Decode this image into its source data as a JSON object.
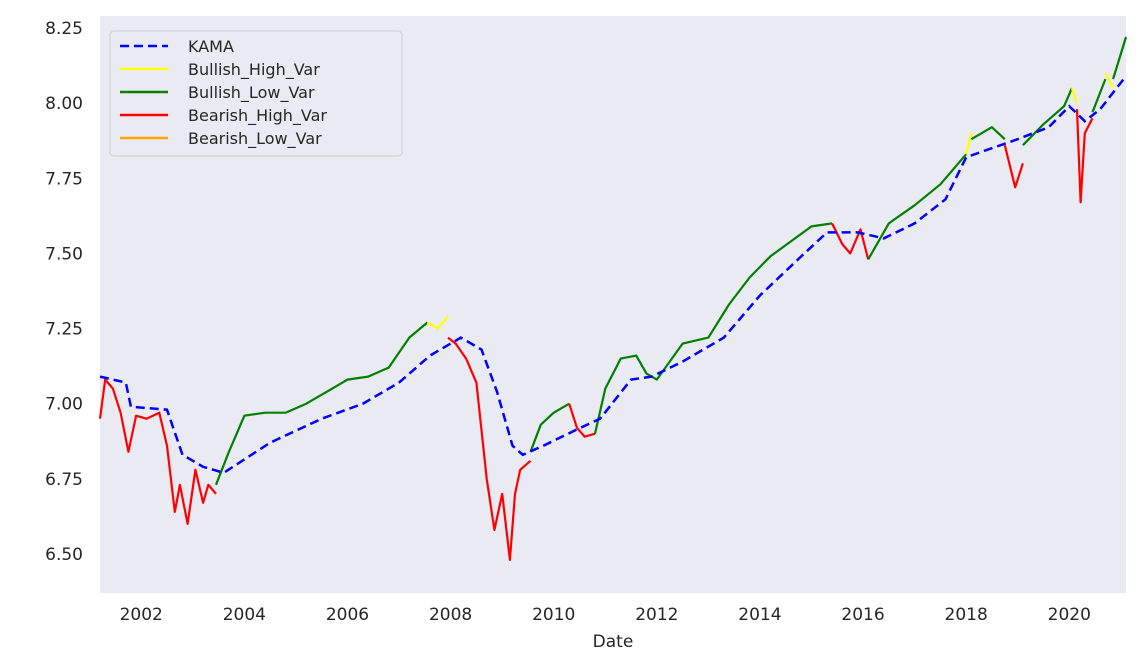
{
  "chart_data": {
    "type": "line",
    "title": "",
    "xlabel": "Date",
    "ylabel": "",
    "xlim": [
      2001.2,
      2021.1
    ],
    "ylim": [
      6.37,
      8.29
    ],
    "grid": false,
    "background": "#eaeaf2",
    "legend_position": "top-left",
    "x_ticks": [
      2002,
      2004,
      2006,
      2008,
      2010,
      2012,
      2014,
      2016,
      2018,
      2020
    ],
    "x_tick_labels": [
      "2002",
      "2004",
      "2006",
      "2008",
      "2010",
      "2012",
      "2014",
      "2016",
      "2018",
      "2020"
    ],
    "y_ticks": [
      6.5,
      6.75,
      7.0,
      7.25,
      7.5,
      7.75,
      8.0,
      8.25
    ],
    "y_tick_labels": [
      "6.50",
      "6.75",
      "7.00",
      "7.25",
      "7.50",
      "7.75",
      "8.00",
      "8.25"
    ],
    "legend": [
      {
        "label": "KAMA",
        "color": "#0000ff",
        "style": "dashed"
      },
      {
        "label": "Bullish_High_Var",
        "color": "#ffff00",
        "style": "solid"
      },
      {
        "label": "Bullish_Low_Var",
        "color": "#008000",
        "style": "solid"
      },
      {
        "label": "Bearish_High_Var",
        "color": "#ff0000",
        "style": "solid"
      },
      {
        "label": "Bearish_Low_Var",
        "color": "#ffa500",
        "style": "solid"
      }
    ],
    "kama": {
      "name": "KAMA",
      "color": "#0000ff",
      "style": "dashed",
      "x": [
        2001.2,
        2001.7,
        2001.8,
        2002.5,
        2002.8,
        2003.2,
        2003.6,
        2004.5,
        2005.5,
        2006.3,
        2007.0,
        2007.6,
        2008.2,
        2008.6,
        2008.9,
        2009.2,
        2009.4,
        2009.8,
        2010.4,
        2010.9,
        2011.5,
        2011.9,
        2012.5,
        2013.3,
        2014.0,
        2014.8,
        2015.3,
        2015.9,
        2016.4,
        2017.0,
        2017.6,
        2018.0,
        2018.5,
        2019.0,
        2019.6,
        2020.0,
        2020.3,
        2020.6,
        2021.1
      ],
      "y": [
        7.09,
        7.07,
        6.99,
        6.98,
        6.83,
        6.79,
        6.77,
        6.87,
        6.95,
        7.0,
        7.07,
        7.16,
        7.22,
        7.18,
        7.04,
        6.86,
        6.83,
        6.86,
        6.91,
        6.95,
        7.08,
        7.09,
        7.14,
        7.22,
        7.36,
        7.49,
        7.57,
        7.57,
        7.55,
        7.6,
        7.68,
        7.82,
        7.85,
        7.88,
        7.92,
        7.99,
        7.94,
        7.98,
        8.09
      ]
    },
    "regime_segments": [
      {
        "label": "Bearish_High_Var",
        "color": "#ff0000",
        "x": [
          2001.2,
          2001.3,
          2001.45,
          2001.6,
          2001.75,
          2001.9,
          2002.1,
          2002.35,
          2002.5,
          2002.65,
          2002.75,
          2002.9,
          2003.05,
          2003.2,
          2003.3,
          2003.45
        ],
        "y": [
          6.95,
          7.08,
          7.05,
          6.97,
          6.84,
          6.96,
          6.95,
          6.97,
          6.86,
          6.64,
          6.73,
          6.6,
          6.78,
          6.67,
          6.73,
          6.7
        ]
      },
      {
        "label": "Bullish_Low_Var",
        "color": "#008000",
        "x": [
          2003.45,
          2003.7,
          2004.0,
          2004.4,
          2004.8,
          2005.2,
          2005.6,
          2006.0,
          2006.4,
          2006.8,
          2007.2,
          2007.55
        ],
        "y": [
          6.73,
          6.84,
          6.96,
          6.97,
          6.97,
          7.0,
          7.04,
          7.08,
          7.09,
          7.12,
          7.22,
          7.27
        ]
      },
      {
        "label": "Bullish_High_Var",
        "color": "#ffff00",
        "x": [
          2007.55,
          2007.75,
          2007.95
        ],
        "y": [
          7.27,
          7.25,
          7.29
        ]
      },
      {
        "label": "Bearish_High_Var",
        "color": "#ff0000",
        "x": [
          2007.95,
          2008.1,
          2008.3,
          2008.5,
          2008.7,
          2008.85,
          2009.0,
          2009.15,
          2009.25,
          2009.35,
          2009.55
        ],
        "y": [
          7.22,
          7.2,
          7.15,
          7.07,
          6.75,
          6.58,
          6.7,
          6.48,
          6.7,
          6.78,
          6.81
        ]
      },
      {
        "label": "Bullish_Low_Var",
        "color": "#008000",
        "x": [
          2009.55,
          2009.75,
          2010.0,
          2010.3
        ],
        "y": [
          6.84,
          6.93,
          6.97,
          7.0
        ]
      },
      {
        "label": "Bearish_High_Var",
        "color": "#ff0000",
        "x": [
          2010.3,
          2010.45,
          2010.6,
          2010.8
        ],
        "y": [
          7.0,
          6.92,
          6.89,
          6.9
        ]
      },
      {
        "label": "Bullish_Low_Var",
        "color": "#008000",
        "x": [
          2010.8,
          2011.0,
          2011.3,
          2011.6,
          2011.8,
          2012.0,
          2012.5,
          2013.0,
          2013.4,
          2013.8,
          2014.2,
          2014.6,
          2015.0,
          2015.4
        ],
        "y": [
          6.9,
          7.05,
          7.15,
          7.16,
          7.1,
          7.08,
          7.2,
          7.22,
          7.33,
          7.42,
          7.49,
          7.54,
          7.59,
          7.6
        ]
      },
      {
        "label": "Bearish_High_Var",
        "color": "#ff0000",
        "x": [
          2015.4,
          2015.6,
          2015.75,
          2015.95,
          2016.1
        ],
        "y": [
          7.6,
          7.53,
          7.5,
          7.58,
          7.48
        ]
      },
      {
        "label": "Bullish_Low_Var",
        "color": "#008000",
        "x": [
          2016.1,
          2016.5,
          2017.0,
          2017.5,
          2018.0
        ],
        "y": [
          7.48,
          7.6,
          7.66,
          7.73,
          7.83
        ]
      },
      {
        "label": "Bullish_High_Var",
        "color": "#ffff00",
        "x": [
          2018.0,
          2018.1
        ],
        "y": [
          7.83,
          7.9
        ]
      },
      {
        "label": "Bullish_Low_Var",
        "color": "#008000",
        "x": [
          2018.1,
          2018.5,
          2018.75
        ],
        "y": [
          7.88,
          7.92,
          7.88
        ]
      },
      {
        "label": "Bearish_High_Var",
        "color": "#ff0000",
        "x": [
          2018.75,
          2018.95,
          2019.1
        ],
        "y": [
          7.86,
          7.72,
          7.8
        ]
      },
      {
        "label": "Bullish_Low_Var",
        "color": "#008000",
        "x": [
          2019.1,
          2019.5,
          2019.9,
          2020.05
        ],
        "y": [
          7.86,
          7.93,
          7.99,
          8.05
        ]
      },
      {
        "label": "Bullish_High_Var",
        "color": "#ffff00",
        "x": [
          2020.05,
          2020.15
        ],
        "y": [
          8.05,
          8.0
        ]
      },
      {
        "label": "Bearish_High_Var",
        "color": "#ff0000",
        "x": [
          2020.15,
          2020.22,
          2020.3,
          2020.45
        ],
        "y": [
          7.98,
          7.67,
          7.9,
          7.95
        ]
      },
      {
        "label": "Bullish_Low_Var",
        "color": "#008000",
        "x": [
          2020.45,
          2020.7
        ],
        "y": [
          7.97,
          8.08
        ]
      },
      {
        "label": "Bullish_High_Var",
        "color": "#ffff00",
        "x": [
          2020.7,
          2020.85
        ],
        "y": [
          8.1,
          8.05
        ]
      },
      {
        "label": "Bullish_Low_Var",
        "color": "#008000",
        "x": [
          2020.85,
          2021.1
        ],
        "y": [
          8.08,
          8.22
        ]
      }
    ]
  }
}
